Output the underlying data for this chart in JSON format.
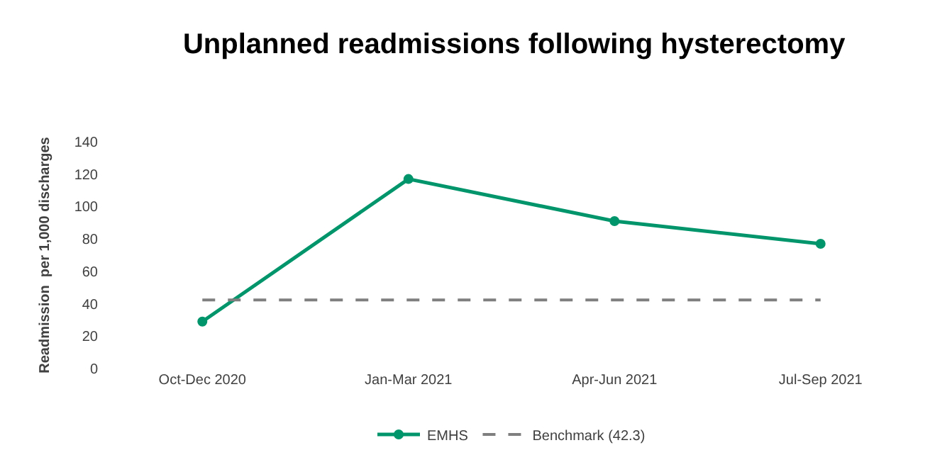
{
  "chart_data": {
    "type": "line",
    "title": "Unplanned readmissions following hysterectomy",
    "ylabel": "Readmission  per 1,000 discharges",
    "categories": [
      "Oct-Dec 2020",
      "Jan-Mar 2021",
      "Apr-Jun 2021",
      "Jul-Sep 2021"
    ],
    "series": [
      {
        "name": "EMHS",
        "color": "#00956b",
        "values": [
          29,
          117,
          91,
          77
        ],
        "marker": "circle",
        "line_style": "solid"
      },
      {
        "name": "Benchmark (42.3)",
        "color": "#7f7f7f",
        "values": [
          42.3,
          42.3,
          42.3,
          42.3
        ],
        "marker": "none",
        "line_style": "dashed"
      }
    ],
    "ylim": [
      0,
      140
    ],
    "yticks": [
      0,
      20,
      40,
      60,
      80,
      100,
      120,
      140
    ],
    "legend": "bottom"
  }
}
